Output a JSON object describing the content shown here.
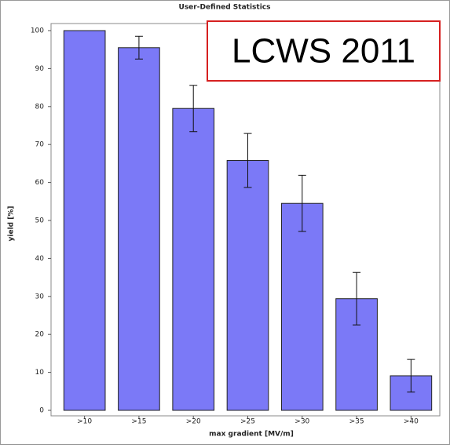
{
  "chart_data": {
    "type": "bar",
    "title": "User-Defined Statistics",
    "annotation": "LCWS 2011",
    "x_label": "max gradient [MV/m]",
    "y_label": "yield [%]",
    "categories": [
      ">10",
      ">15",
      ">20",
      ">25",
      ">30",
      ">35",
      ">40"
    ],
    "values": [
      100,
      95.5,
      79.5,
      65.8,
      54.5,
      29.4,
      9.1
    ],
    "errors": [
      null,
      3,
      6.1,
      7.1,
      7.4,
      6.9,
      4.3
    ],
    "color": "#7b79f7",
    "ylim": [
      0,
      100
    ],
    "yticks": [
      0,
      10,
      20,
      30,
      40,
      50,
      60,
      70,
      80,
      90,
      100
    ]
  }
}
